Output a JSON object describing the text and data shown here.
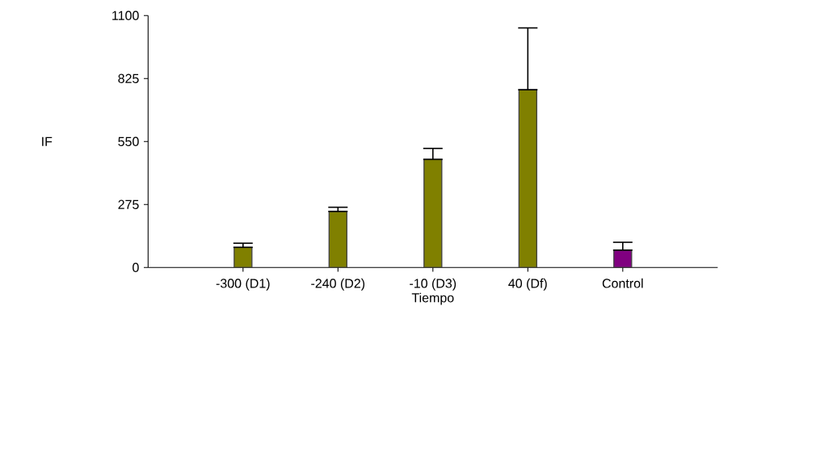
{
  "chart_data": {
    "type": "bar",
    "xlabel": "Tiempo",
    "ylabel": "IF",
    "categories": [
      "-300 (D1)",
      "-240 (D2)",
      "-10 (D3)",
      "40 (Df)",
      "Control"
    ],
    "values": [
      88,
      245,
      472,
      776,
      76
    ],
    "colors": [
      "#808000",
      "#808000",
      "#808000",
      "#808000",
      "#800080"
    ],
    "errors": [
      [
        88,
        106
      ],
      [
        245,
        263
      ],
      [
        472,
        520
      ],
      [
        776,
        1046
      ],
      [
        76,
        110
      ]
    ],
    "ylim": [
      0,
      1100
    ],
    "yticks": [
      0,
      275,
      550,
      825,
      1100
    ],
    "grid": false
  }
}
